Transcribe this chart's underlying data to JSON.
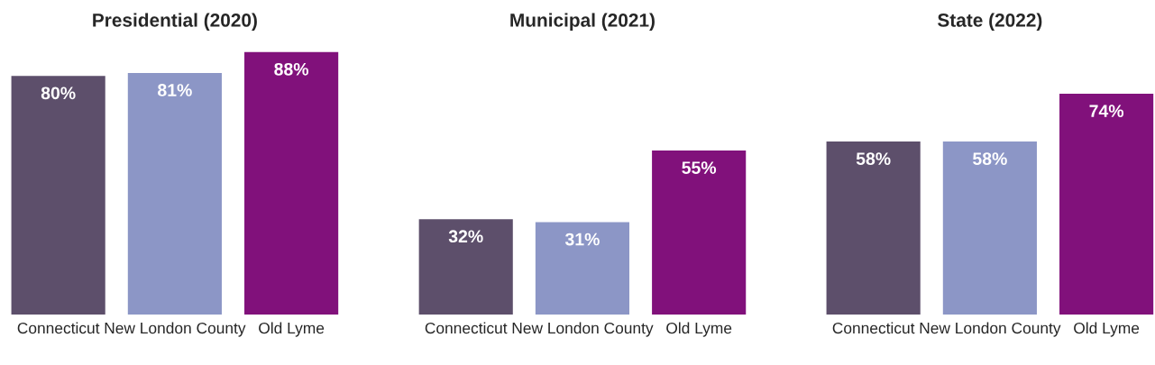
{
  "chart_data": [
    {
      "type": "bar",
      "title": "Presidential (2020)",
      "categories": [
        "Connecticut",
        "New London County",
        "Old Lyme"
      ],
      "values": [
        80,
        81,
        88
      ],
      "colors": [
        "#5d4f6b",
        "#8c96c6",
        "#81117b"
      ],
      "value_labels": [
        "80%",
        "81%",
        "88%"
      ]
    },
    {
      "type": "bar",
      "title": "Municipal (2021)",
      "categories": [
        "Connecticut",
        "New London County",
        "Old Lyme"
      ],
      "values": [
        32,
        31,
        55
      ],
      "colors": [
        "#5d4f6b",
        "#8c96c6",
        "#81117b"
      ],
      "value_labels": [
        "32%",
        "31%",
        "55%"
      ]
    },
    {
      "type": "bar",
      "title": "State (2022)",
      "categories": [
        "Connecticut",
        "New London County",
        "Old Lyme"
      ],
      "values": [
        58,
        58,
        74
      ],
      "colors": [
        "#5d4f6b",
        "#8c96c6",
        "#81117b"
      ],
      "value_labels": [
        "58%",
        "58%",
        "74%"
      ]
    }
  ]
}
